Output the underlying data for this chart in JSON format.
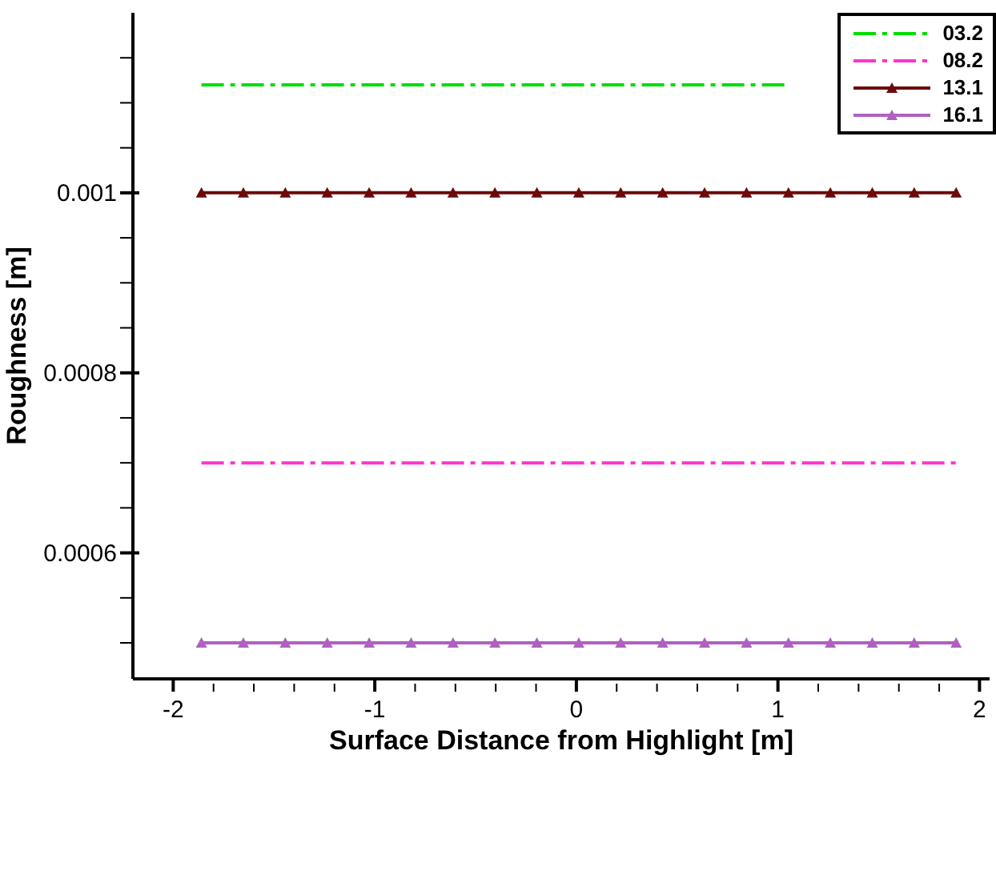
{
  "chart_data": {
    "type": "line",
    "xlabel": "Surface Distance from Highlight [m]",
    "ylabel": "Roughness [m]",
    "x": [
      -1.86,
      -1.652,
      -1.444,
      -1.236,
      -1.028,
      -0.82,
      -0.612,
      -0.404,
      -0.196,
      0.012,
      0.22,
      0.428,
      0.636,
      0.844,
      1.052,
      1.26,
      1.468,
      1.676,
      1.884
    ],
    "series": [
      {
        "name": "03.2",
        "color": "#00dd00",
        "line_style": "dashed",
        "marker": "none",
        "values": [
          0.00112,
          0.00112,
          0.00112,
          0.00112,
          0.00112,
          0.00112,
          0.00112,
          0.00112,
          0.00112,
          0.00112,
          0.00112,
          0.00112,
          0.00112,
          0.00112,
          0.00112,
          null,
          null,
          null,
          null
        ]
      },
      {
        "name": "08.2",
        "color": "#ff33cc",
        "line_style": "dashed",
        "marker": "none",
        "values": [
          0.0007,
          0.0007,
          0.0007,
          0.0007,
          0.0007,
          0.0007,
          0.0007,
          0.0007,
          0.0007,
          0.0007,
          0.0007,
          0.0007,
          0.0007,
          0.0007,
          0.0007,
          0.0007,
          0.0007,
          0.0007,
          0.0007
        ]
      },
      {
        "name": "13.1",
        "color": "#6b0a0a",
        "line_style": "solid",
        "marker": "triangle",
        "values": [
          0.001,
          0.001,
          0.001,
          0.001,
          0.001,
          0.001,
          0.001,
          0.001,
          0.001,
          0.001,
          0.001,
          0.001,
          0.001,
          0.001,
          0.001,
          0.001,
          0.001,
          0.001,
          0.001
        ]
      },
      {
        "name": "16.1",
        "color": "#b060c0",
        "line_style": "solid",
        "marker": "triangle",
        "values": [
          0.0005,
          0.0005,
          0.0005,
          0.0005,
          0.0005,
          0.0005,
          0.0005,
          0.0005,
          0.0005,
          0.0005,
          0.0005,
          0.0005,
          0.0005,
          0.0005,
          0.0005,
          0.0005,
          0.0005,
          0.0005,
          0.0005
        ]
      }
    ],
    "xlim": [
      -2.2,
      2.05
    ],
    "xticks": [
      -2,
      {
        "value": -1.8,
        "label": null
      },
      {
        "value": -1.6,
        "label": null
      },
      {
        "value": -1.4,
        "label": null
      },
      {
        "value": -1.2,
        "label": null
      },
      -1,
      {
        "value": -0.8,
        "label": null
      },
      {
        "value": -0.6,
        "label": null
      },
      {
        "value": -0.4,
        "label": null
      },
      {
        "value": -0.2,
        "label": null
      },
      0,
      {
        "value": 0.2,
        "label": null
      },
      {
        "value": 0.4,
        "label": null
      },
      {
        "value": 0.6,
        "label": null
      },
      {
        "value": 0.8,
        "label": null
      },
      1,
      {
        "value": 1.2,
        "label": null
      },
      {
        "value": 1.4,
        "label": null
      },
      {
        "value": 1.6,
        "label": null
      },
      {
        "value": 1.8,
        "label": null
      },
      2
    ],
    "ylim": [
      0.00046,
      0.0012
    ],
    "yticks": [
      {
        "value": 0.0005,
        "label": null
      },
      {
        "value": 0.00055,
        "label": null
      },
      0.0006,
      {
        "value": 0.00065,
        "label": null
      },
      {
        "value": 0.0007,
        "label": null
      },
      {
        "value": 0.00075,
        "label": null
      },
      0.0008,
      {
        "value": 0.00085,
        "label": null
      },
      {
        "value": 0.0009,
        "label": null
      },
      {
        "value": 0.00095,
        "label": null
      },
      0.001,
      {
        "value": 0.00105,
        "label": null
      },
      {
        "value": 0.0011,
        "label": null
      },
      {
        "value": 0.00115,
        "label": null
      }
    ],
    "grid": false,
    "legend": "top right"
  }
}
